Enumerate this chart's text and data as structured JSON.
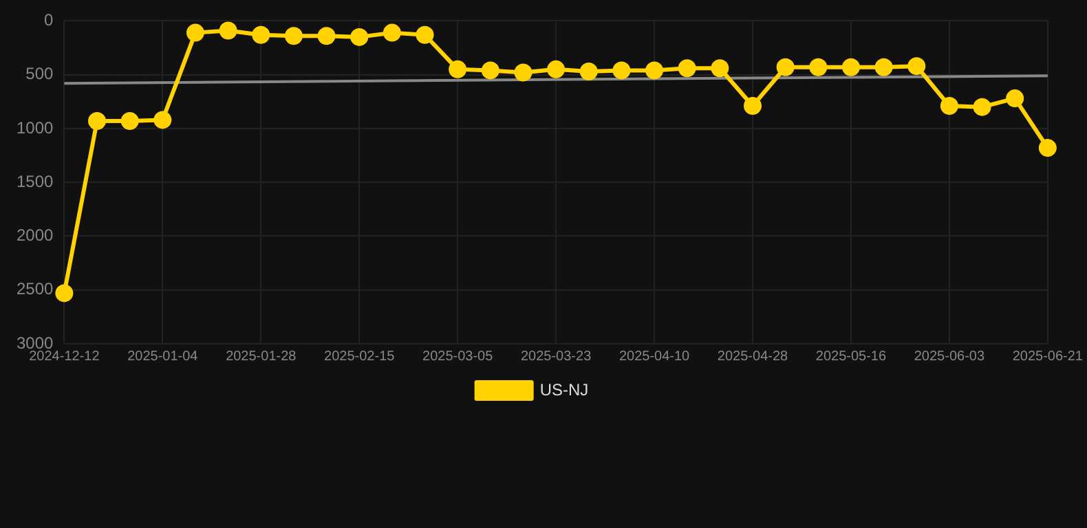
{
  "chart_data": {
    "type": "line",
    "categories": [
      "2024-12-12",
      null,
      null,
      "2025-01-04",
      null,
      null,
      "2025-01-28",
      null,
      null,
      "2025-02-15",
      null,
      null,
      "2025-03-05",
      null,
      null,
      "2025-03-23",
      null,
      null,
      "2025-04-10",
      null,
      null,
      "2025-04-28",
      null,
      null,
      "2025-05-16",
      null,
      null,
      "2025-06-03",
      null,
      null,
      "2025-06-21"
    ],
    "series": [
      {
        "name": "US-NJ",
        "color": "#ffd200",
        "marker": "circle",
        "values": [
          2530,
          930,
          930,
          920,
          110,
          90,
          130,
          140,
          140,
          150,
          110,
          130,
          450,
          460,
          480,
          450,
          470,
          460,
          460,
          440,
          440,
          790,
          430,
          430,
          430,
          430,
          420,
          790,
          800,
          720,
          1180
        ]
      },
      {
        "type": "line",
        "color": "#888888",
        "marker": "none",
        "values": [
          580,
          null,
          null,
          null,
          null,
          null,
          null,
          null,
          null,
          null,
          null,
          null,
          null,
          null,
          null,
          null,
          null,
          null,
          null,
          null,
          null,
          null,
          null,
          null,
          null,
          null,
          null,
          null,
          null,
          null,
          510
        ]
      }
    ],
    "ylim": [
      3000,
      0
    ],
    "yticks": [
      0,
      500,
      1000,
      1500,
      2000,
      2500,
      3000
    ],
    "grid": true,
    "legend": "bottom"
  }
}
